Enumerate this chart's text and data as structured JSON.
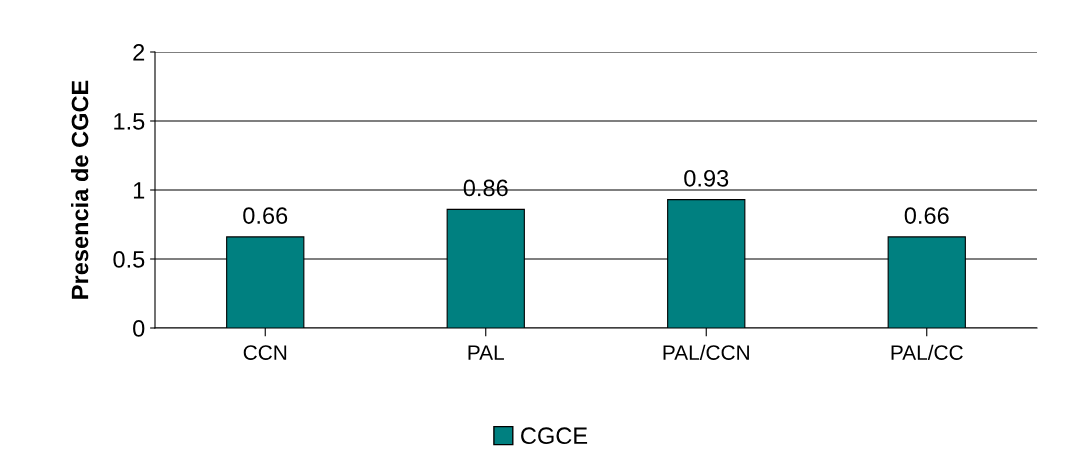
{
  "chart_data": {
    "type": "bar",
    "ylabel": "Presencia de CGCE",
    "categories": [
      "CCN",
      "PAL",
      "PAL/CCN",
      "PAL/CC"
    ],
    "series": [
      {
        "name": "CGCE",
        "color": "#008080",
        "values": [
          0.66,
          0.86,
          0.93,
          0.66
        ]
      }
    ],
    "ylim": [
      0,
      2
    ],
    "yticks": [
      0,
      0.5,
      1,
      1.5,
      2
    ],
    "grid": "y",
    "legend": "bottom",
    "data_labels": true
  }
}
